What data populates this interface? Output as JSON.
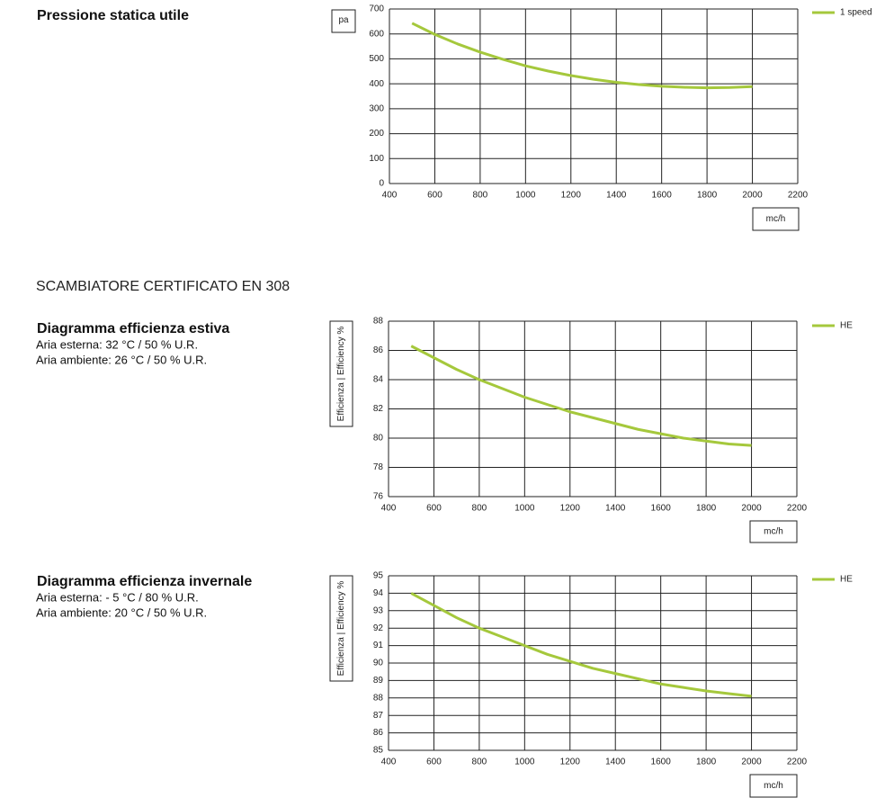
{
  "section_title": "SCAMBIATORE CERTIFICATO EN 308",
  "chart_data": [
    {
      "type": "line",
      "title": "Pressione statica utile",
      "y_label": "pa",
      "x_label": "mc/h",
      "x": [
        500,
        600,
        700,
        800,
        900,
        1000,
        1100,
        1200,
        1300,
        1400,
        1500,
        1600,
        1700,
        1800,
        1900,
        2000
      ],
      "series": [
        {
          "name": "1 speed",
          "color": "#a5c83c",
          "values": [
            643,
            598,
            560,
            527,
            498,
            472,
            451,
            433,
            418,
            406,
            397,
            390,
            386,
            384,
            385,
            389
          ]
        }
      ],
      "xlim": [
        400,
        2200
      ],
      "xticks": [
        400,
        600,
        800,
        1000,
        1200,
        1400,
        1600,
        1800,
        2000,
        2200
      ],
      "ylim": [
        0,
        700
      ],
      "yticks": [
        0,
        100,
        200,
        300,
        400,
        500,
        600,
        700
      ],
      "grid": true
    },
    {
      "type": "line",
      "title": "Diagramma efficienza estiva",
      "subtitle_lines": [
        "Aria esterna: 32 °C / 50 % U.R.",
        "Aria ambiente: 26 °C / 50 % U.R."
      ],
      "y_label": "Efficienza | Efficiency %",
      "x_label": "mc/h",
      "x": [
        500,
        600,
        700,
        800,
        900,
        1000,
        1100,
        1200,
        1300,
        1400,
        1500,
        1600,
        1700,
        1800,
        1900,
        2000
      ],
      "series": [
        {
          "name": "HE",
          "color": "#a5c83c",
          "values": [
            86.3,
            85.5,
            84.7,
            84.0,
            83.4,
            82.8,
            82.3,
            81.8,
            81.4,
            81.0,
            80.6,
            80.3,
            80.0,
            79.8,
            79.6,
            79.5
          ]
        }
      ],
      "xlim": [
        400,
        2200
      ],
      "xticks": [
        400,
        600,
        800,
        1000,
        1200,
        1400,
        1600,
        1800,
        2000,
        2200
      ],
      "ylim": [
        76,
        88
      ],
      "yticks": [
        76,
        78,
        80,
        82,
        84,
        86,
        88
      ],
      "grid": true
    },
    {
      "type": "line",
      "title": "Diagramma efficienza invernale",
      "subtitle_lines": [
        "Aria esterna: - 5 °C / 80 % U.R.",
        "Aria ambiente: 20 °C / 50 % U.R."
      ],
      "y_label": "Efficienza | Efficiency %",
      "x_label": "mc/h",
      "x": [
        500,
        600,
        700,
        800,
        900,
        1000,
        1100,
        1200,
        1300,
        1400,
        1500,
        1600,
        1700,
        1800,
        1900,
        2000
      ],
      "series": [
        {
          "name": "HE",
          "color": "#a5c83c",
          "values": [
            94.0,
            93.3,
            92.6,
            92.0,
            91.5,
            91.0,
            90.5,
            90.1,
            89.7,
            89.4,
            89.1,
            88.8,
            88.6,
            88.4,
            88.25,
            88.1
          ]
        }
      ],
      "xlim": [
        400,
        2200
      ],
      "xticks": [
        400,
        600,
        800,
        1000,
        1200,
        1400,
        1600,
        1800,
        2000,
        2200
      ],
      "ylim": [
        85,
        95
      ],
      "yticks": [
        85,
        86,
        87,
        88,
        89,
        90,
        91,
        92,
        93,
        94,
        95
      ],
      "grid": true
    }
  ]
}
